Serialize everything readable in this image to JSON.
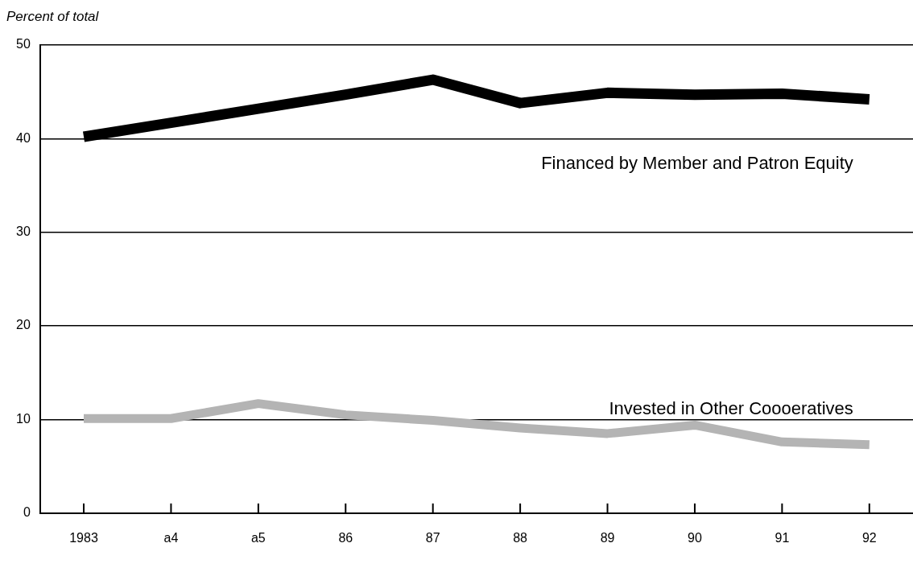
{
  "chart_data": {
    "type": "line",
    "ylabel": "Percent of total",
    "categories": [
      "1983",
      "a4",
      "a5",
      "86",
      "87",
      "88",
      "89",
      "90",
      "91",
      "92"
    ],
    "series": [
      {
        "name": "Financed by Member and Patron Equity",
        "color": "#000000",
        "values": [
          40.2,
          41.7,
          43.2,
          44.7,
          46.3,
          43.8,
          44.9,
          44.7,
          44.8,
          44.2
        ]
      },
      {
        "name": "Invested in Other Coooeratives",
        "color": "#b4b4b4",
        "values": [
          10.1,
          10.1,
          11.7,
          10.5,
          9.9,
          9.1,
          8.5,
          9.4,
          7.6,
          7.3
        ]
      }
    ],
    "ylim": [
      0,
      50
    ],
    "yticks": [
      0,
      10,
      20,
      30,
      40,
      50
    ],
    "grid": "y",
    "legend": false,
    "marker": "none",
    "line_style": "solid"
  }
}
